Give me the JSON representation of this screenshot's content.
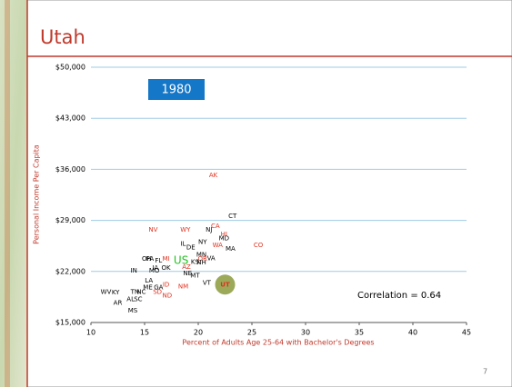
{
  "chart_data": {
    "type": "scatter",
    "title": "Utah",
    "year_label": "1980",
    "annotation": "Correlation = 0.64",
    "xlabel": "Percent of Adults Age 25-64 with Bachelor's Degrees",
    "ylabel": "Personal Income Per Capita",
    "page_number": "7",
    "xlim": [
      10,
      45
    ],
    "xticks": [
      10,
      15,
      20,
      25,
      30,
      35,
      40,
      45
    ],
    "ylim": [
      15000,
      50000
    ],
    "yticks": [
      {
        "value": 15000,
        "label": "$15,000"
      },
      {
        "value": 22000,
        "label": "$22,000"
      },
      {
        "value": 29000,
        "label": "$29,000"
      },
      {
        "value": 36000,
        "label": "$36,000"
      },
      {
        "value": 43000,
        "label": "$43,000"
      },
      {
        "value": 50000,
        "label": "$50,000"
      }
    ],
    "grid": true,
    "grid_color": "#9fcbe6",
    "highlight_color": "#8a9a3c",
    "points": [
      {
        "label": "AK",
        "x": 21.4,
        "y": 35200,
        "color": "#e0301e"
      },
      {
        "label": "CT",
        "x": 23.2,
        "y": 29600,
        "color": "#000000"
      },
      {
        "label": "CA",
        "x": 21.6,
        "y": 28200,
        "color": "#e0301e"
      },
      {
        "label": "NJ",
        "x": 21.0,
        "y": 27700,
        "color": "#000000"
      },
      {
        "label": "HI",
        "x": 22.4,
        "y": 27100,
        "color": "#e0301e"
      },
      {
        "label": "MD",
        "x": 22.4,
        "y": 26500,
        "color": "#000000"
      },
      {
        "label": "NV",
        "x": 15.8,
        "y": 27700,
        "color": "#e0301e"
      },
      {
        "label": "WY",
        "x": 18.8,
        "y": 27700,
        "color": "#e0301e"
      },
      {
        "label": "IL",
        "x": 18.6,
        "y": 25800,
        "color": "#000000"
      },
      {
        "label": "NY",
        "x": 20.4,
        "y": 26000,
        "color": "#000000"
      },
      {
        "label": "WA",
        "x": 21.8,
        "y": 25600,
        "color": "#e0301e"
      },
      {
        "label": "CO",
        "x": 25.6,
        "y": 25600,
        "color": "#e0301e"
      },
      {
        "label": "MA",
        "x": 23.0,
        "y": 25100,
        "color": "#000000"
      },
      {
        "label": "DE",
        "x": 19.3,
        "y": 25300,
        "color": "#000000"
      },
      {
        "label": "MN",
        "x": 20.3,
        "y": 24300,
        "color": "#000000"
      },
      {
        "label": "OR",
        "x": 20.4,
        "y": 23700,
        "color": "#e0301e"
      },
      {
        "label": "VA",
        "x": 21.2,
        "y": 23800,
        "color": "#000000"
      },
      {
        "label": "KS",
        "x": 19.7,
        "y": 23300,
        "color": "#000000"
      },
      {
        "label": "NH",
        "x": 20.3,
        "y": 23200,
        "color": "#000000"
      },
      {
        "label": "OH",
        "x": 15.2,
        "y": 23700,
        "color": "#000000"
      },
      {
        "label": "PA",
        "x": 15.5,
        "y": 23700,
        "color": "#000000"
      },
      {
        "label": "FL",
        "x": 16.3,
        "y": 23500,
        "color": "#000000"
      },
      {
        "label": "MI",
        "x": 17.0,
        "y": 23700,
        "color": "#e0301e"
      },
      {
        "label": "US",
        "x": 18.4,
        "y": 23500,
        "color": "#22c422",
        "size": 12
      },
      {
        "label": "IN",
        "x": 14.0,
        "y": 22100,
        "color": "#000000"
      },
      {
        "label": "IA",
        "x": 16.0,
        "y": 22500,
        "color": "#000000"
      },
      {
        "label": "OK",
        "x": 17.0,
        "y": 22500,
        "color": "#000000"
      },
      {
        "label": "AZ",
        "x": 18.9,
        "y": 22600,
        "color": "#e0301e"
      },
      {
        "label": "MO",
        "x": 15.9,
        "y": 22100,
        "color": "#000000"
      },
      {
        "label": "NE",
        "x": 19.0,
        "y": 21700,
        "color": "#000000"
      },
      {
        "label": "MT",
        "x": 19.7,
        "y": 21400,
        "color": "#000000"
      },
      {
        "label": "LA",
        "x": 15.4,
        "y": 20700,
        "color": "#000000"
      },
      {
        "label": "ME",
        "x": 15.3,
        "y": 19800,
        "color": "#000000"
      },
      {
        "label": "GA",
        "x": 16.3,
        "y": 19800,
        "color": "#000000"
      },
      {
        "label": "ID",
        "x": 17.0,
        "y": 20200,
        "color": "#e0301e"
      },
      {
        "label": "VT",
        "x": 20.8,
        "y": 20400,
        "color": "#000000"
      },
      {
        "label": "UT",
        "x": 22.5,
        "y": 20200,
        "color": "#e0301e",
        "highlight": true
      },
      {
        "label": "NM",
        "x": 18.6,
        "y": 19900,
        "color": "#e0301e"
      },
      {
        "label": "SD",
        "x": 16.2,
        "y": 19200,
        "color": "#e0301e"
      },
      {
        "label": "ND",
        "x": 17.1,
        "y": 18700,
        "color": "#e0301e"
      },
      {
        "label": "TN",
        "x": 14.1,
        "y": 19200,
        "color": "#000000"
      },
      {
        "label": "NC",
        "x": 14.7,
        "y": 19200,
        "color": "#000000"
      },
      {
        "label": "AL",
        "x": 13.7,
        "y": 18200,
        "color": "#000000"
      },
      {
        "label": "SC",
        "x": 14.4,
        "y": 18200,
        "color": "#000000"
      },
      {
        "label": "WV",
        "x": 11.4,
        "y": 19200,
        "color": "#000000"
      },
      {
        "label": "KY",
        "x": 12.3,
        "y": 19100,
        "color": "#000000"
      },
      {
        "label": "AR",
        "x": 12.5,
        "y": 17700,
        "color": "#000000"
      },
      {
        "label": "MS",
        "x": 13.9,
        "y": 16600,
        "color": "#000000"
      }
    ]
  }
}
